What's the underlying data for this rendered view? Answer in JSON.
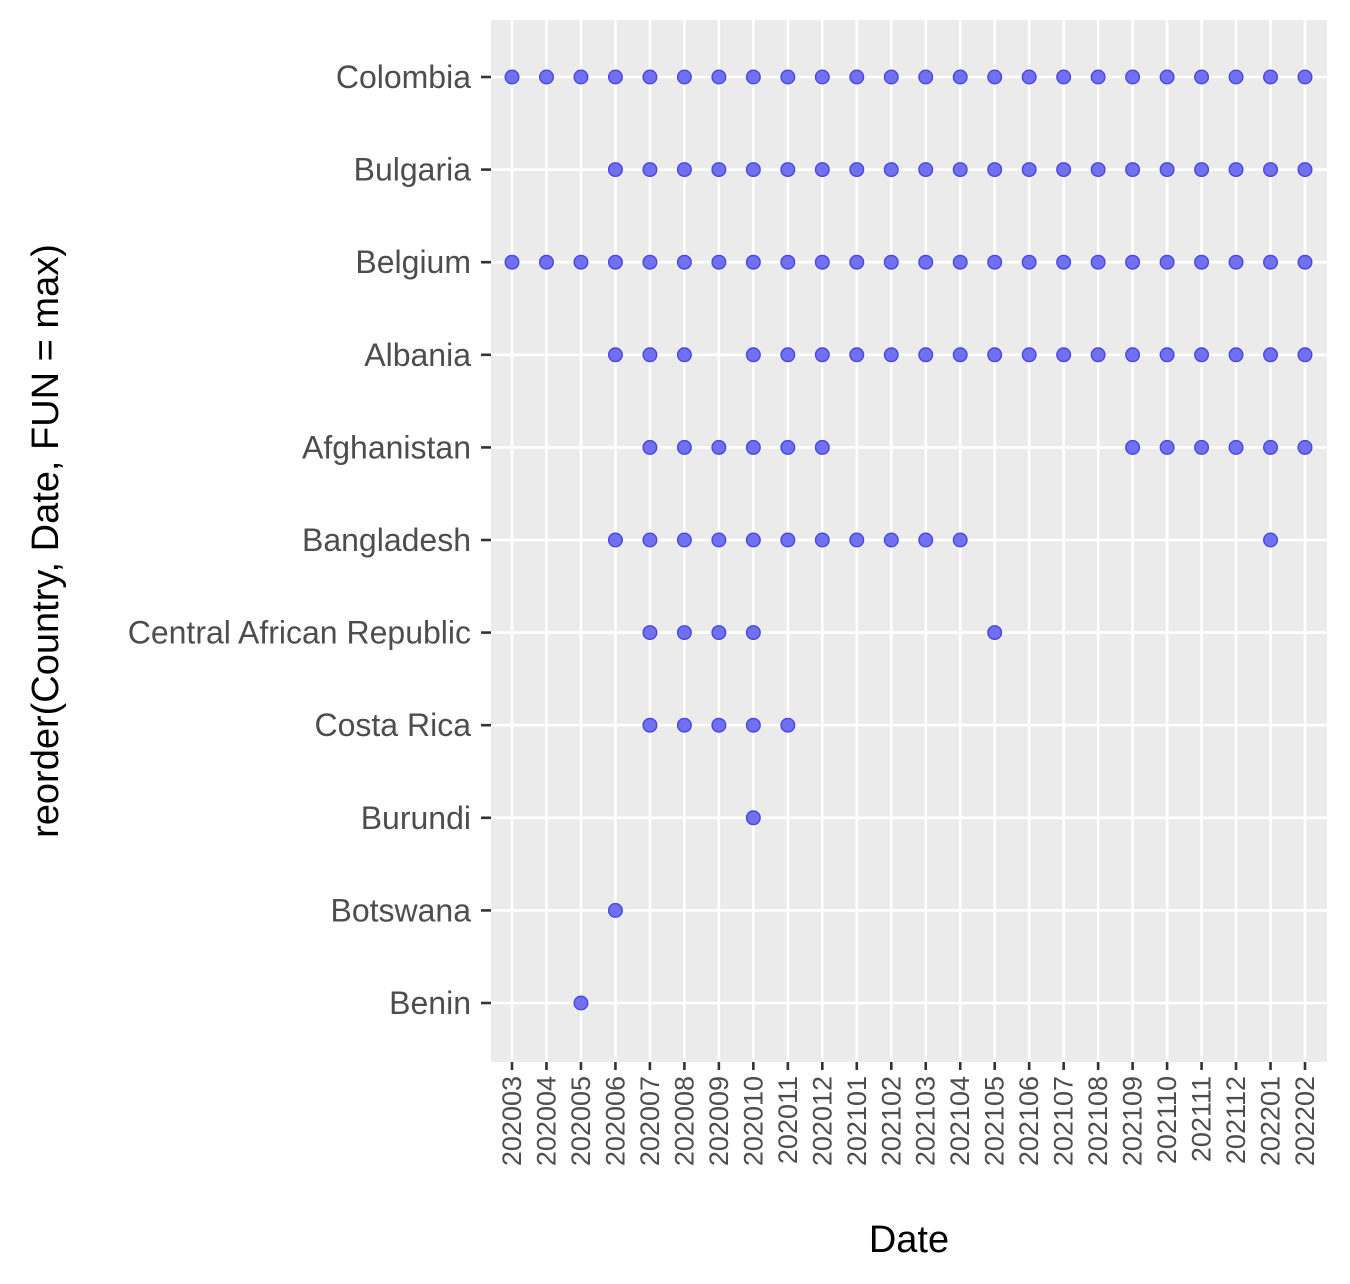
{
  "chart_data": {
    "type": "scatter",
    "xlabel": "Date",
    "ylabel": "reorder(Country, Date, FUN = max)",
    "x_categories": [
      "202003",
      "202004",
      "202005",
      "202006",
      "202007",
      "202008",
      "202009",
      "202010",
      "202011",
      "202012",
      "202101",
      "202102",
      "202103",
      "202104",
      "202105",
      "202106",
      "202107",
      "202108",
      "202109",
      "202110",
      "202111",
      "202112",
      "202201",
      "202202"
    ],
    "y_categories": [
      "Colombia",
      "Bulgaria",
      "Belgium",
      "Albania",
      "Afghanistan",
      "Bangladesh",
      "Central African Republic",
      "Costa Rica",
      "Burundi",
      "Botswana",
      "Benin"
    ],
    "points": {
      "Colombia": [
        "202003",
        "202004",
        "202005",
        "202006",
        "202007",
        "202008",
        "202009",
        "202010",
        "202011",
        "202012",
        "202101",
        "202102",
        "202103",
        "202104",
        "202105",
        "202106",
        "202107",
        "202108",
        "202109",
        "202110",
        "202111",
        "202112",
        "202201",
        "202202"
      ],
      "Bulgaria": [
        "202006",
        "202007",
        "202008",
        "202009",
        "202010",
        "202011",
        "202012",
        "202101",
        "202102",
        "202103",
        "202104",
        "202105",
        "202106",
        "202107",
        "202108",
        "202109",
        "202110",
        "202111",
        "202112",
        "202201",
        "202202"
      ],
      "Belgium": [
        "202003",
        "202004",
        "202005",
        "202006",
        "202007",
        "202008",
        "202009",
        "202010",
        "202011",
        "202012",
        "202101",
        "202102",
        "202103",
        "202104",
        "202105",
        "202106",
        "202107",
        "202108",
        "202109",
        "202110",
        "202111",
        "202112",
        "202201",
        "202202"
      ],
      "Albania": [
        "202006",
        "202007",
        "202008",
        "202010",
        "202011",
        "202012",
        "202101",
        "202102",
        "202103",
        "202104",
        "202105",
        "202106",
        "202107",
        "202108",
        "202109",
        "202110",
        "202111",
        "202112",
        "202201",
        "202202"
      ],
      "Afghanistan": [
        "202007",
        "202008",
        "202009",
        "202010",
        "202011",
        "202012",
        "202109",
        "202110",
        "202111",
        "202112",
        "202201",
        "202202"
      ],
      "Bangladesh": [
        "202006",
        "202007",
        "202008",
        "202009",
        "202010",
        "202011",
        "202012",
        "202101",
        "202102",
        "202103",
        "202104",
        "202201"
      ],
      "Central African Republic": [
        "202007",
        "202008",
        "202009",
        "202010",
        "202105"
      ],
      "Costa Rica": [
        "202007",
        "202008",
        "202009",
        "202010",
        "202011"
      ],
      "Burundi": [
        "202010"
      ],
      "Botswana": [
        "202006"
      ],
      "Benin": [
        "202005"
      ]
    },
    "point_color": "#7070F0",
    "point_stroke": "#4646E6",
    "panel_background": "#EBEBEB",
    "grid_color": "#FFFFFF",
    "grid": true,
    "legend": "none"
  }
}
